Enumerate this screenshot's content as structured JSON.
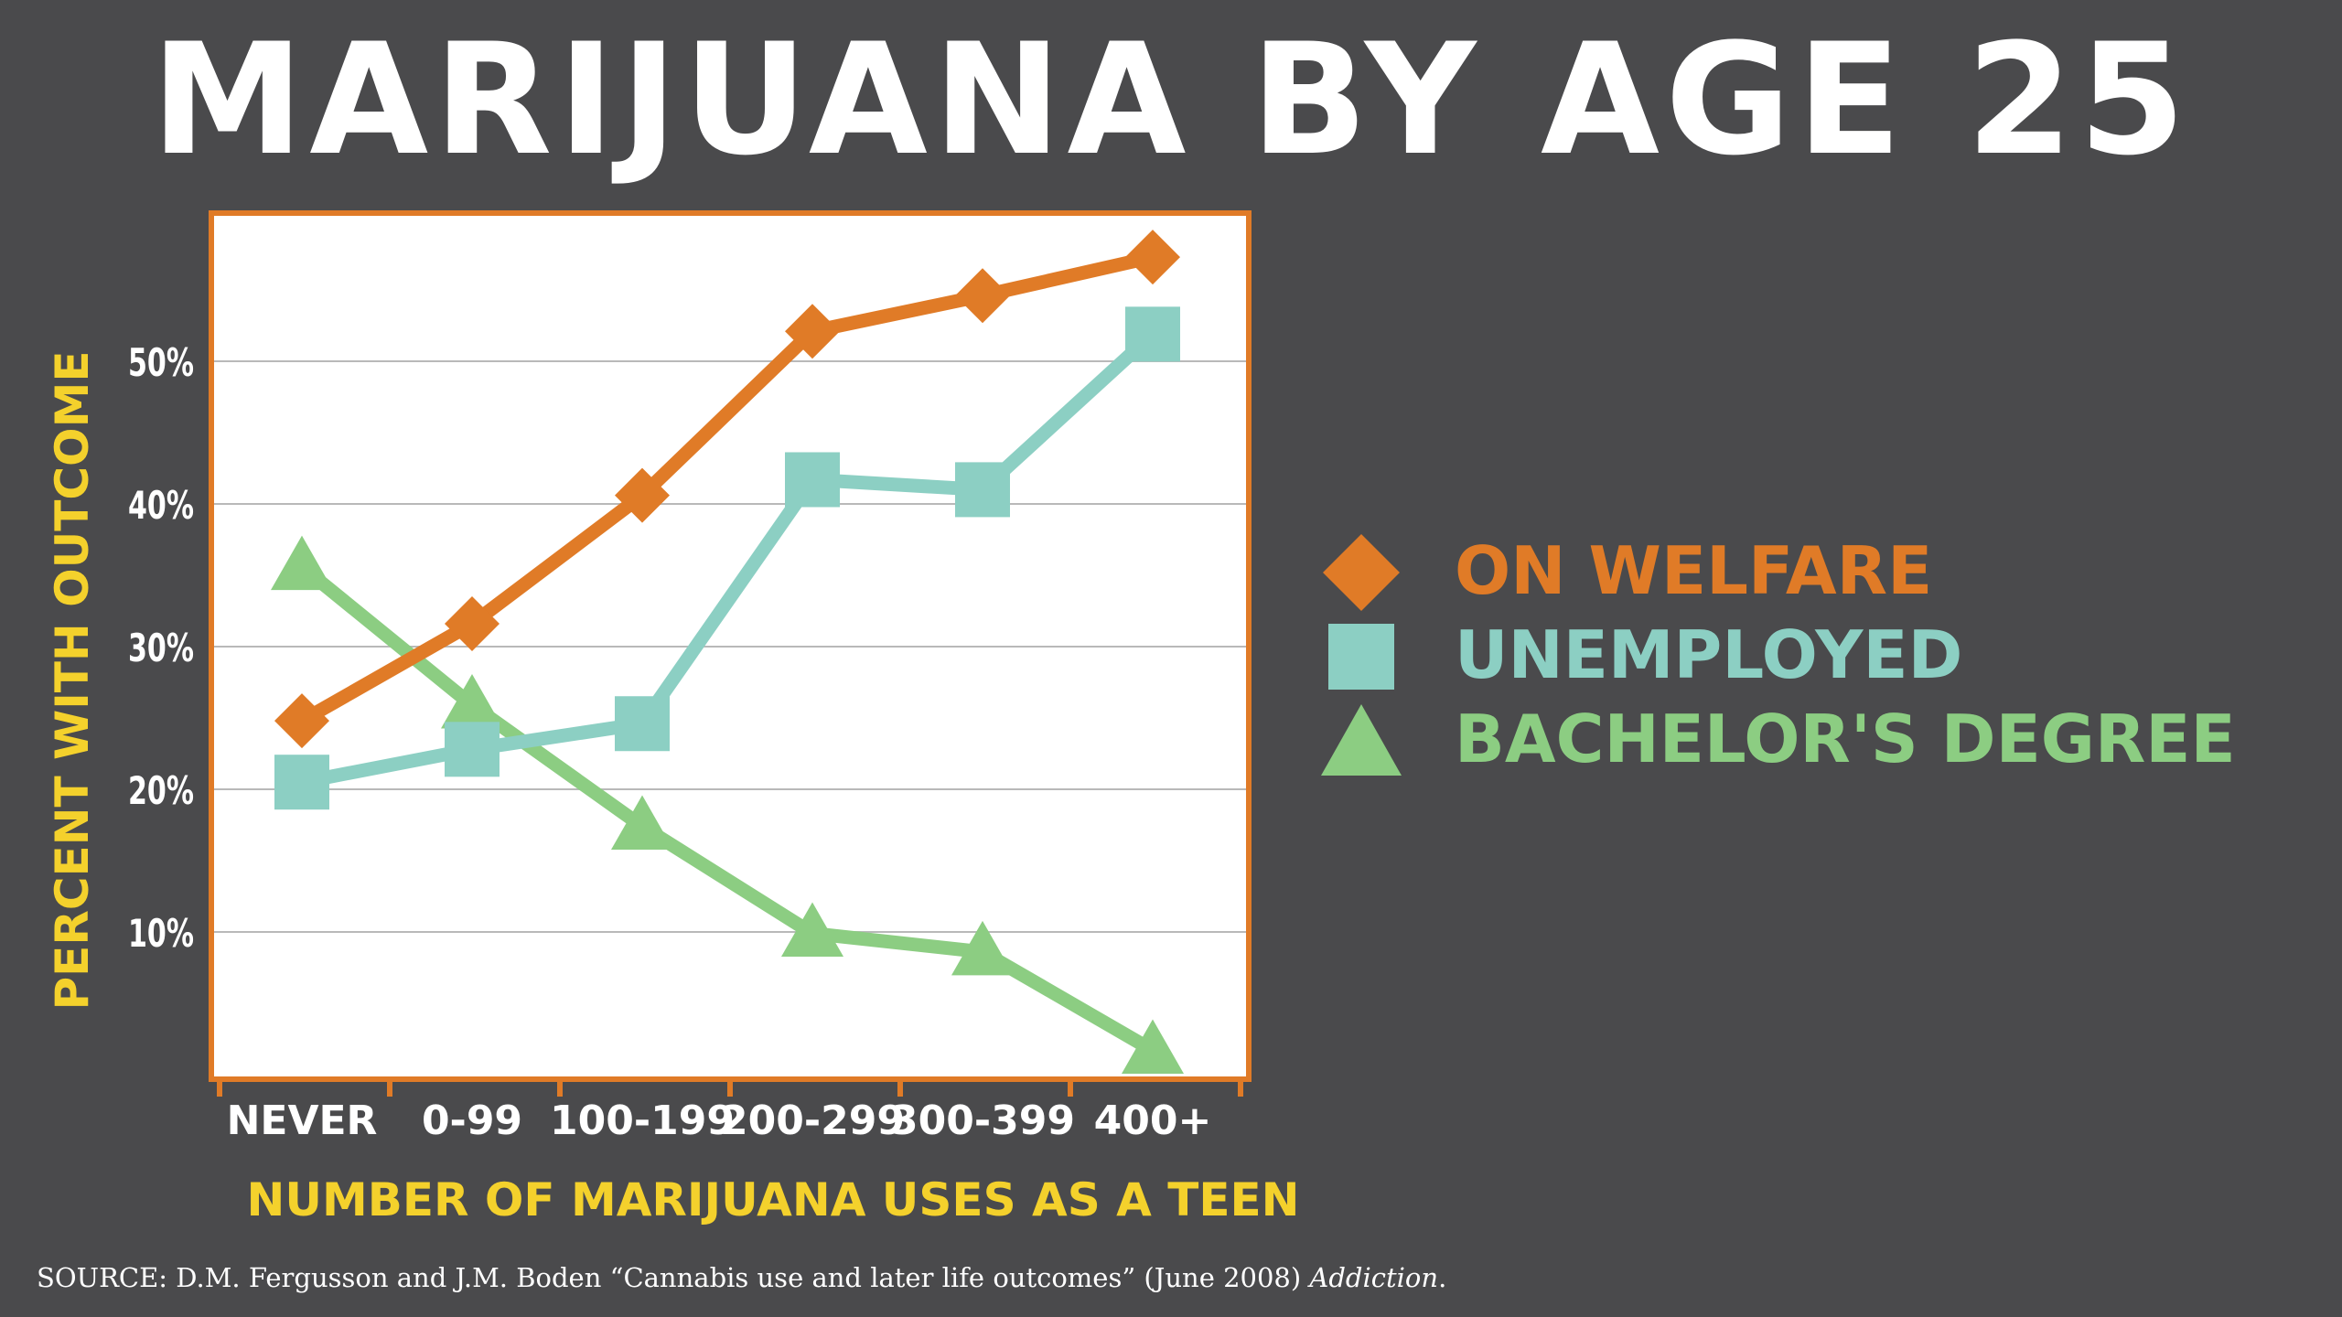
{
  "colors": {
    "background": "#4a4a4c",
    "frame": "#e07b27",
    "label_yellow": "#f4d12c",
    "tick_text": "#ffffff"
  },
  "chart_data": {
    "type": "line",
    "title": "MARIJUANA BY AGE 25",
    "xlabel": "NUMBER OF MARIJUANA USES AS A TEEN",
    "ylabel": "PERCENT WITH OUTCOME",
    "categories": [
      "NEVER",
      "0-99",
      "100-199",
      "200-299",
      "300-399",
      "400+"
    ],
    "ylim": [
      0,
      60
    ],
    "yticks": [
      {
        "value": 10,
        "label": "10%"
      },
      {
        "value": 20,
        "label": "20%"
      },
      {
        "value": 30,
        "label": "30%"
      },
      {
        "value": 40,
        "label": "40%"
      },
      {
        "value": 50,
        "label": "50%"
      }
    ],
    "grid": true,
    "legend_position": "right",
    "series": [
      {
        "name": "ON WELFARE",
        "color": "#e07b27",
        "marker": "diamond",
        "values": [
          24.8,
          31.6,
          40.6,
          52.1,
          54.6,
          57.3
        ]
      },
      {
        "name": "UNEMPLOYED",
        "color": "#8ccfc3",
        "marker": "square",
        "values": [
          20.5,
          22.8,
          24.6,
          41.7,
          41.0,
          51.9
        ]
      },
      {
        "name": "BACHELOR'S DEGREE",
        "color": "#8ccd82",
        "marker": "triangle",
        "values": [
          35.6,
          25.9,
          17.4,
          9.9,
          8.6,
          1.7
        ]
      }
    ]
  },
  "legend": {
    "items": [
      "ON WELFARE",
      "UNEMPLOYED",
      "BACHELOR'S DEGREE"
    ]
  },
  "source": {
    "text": "SOURCE: D.M. Fergusson and J.M. Boden “Cannabis use and later life outcomes” (June 2008) ",
    "journal": "Addiction",
    "end": "."
  }
}
